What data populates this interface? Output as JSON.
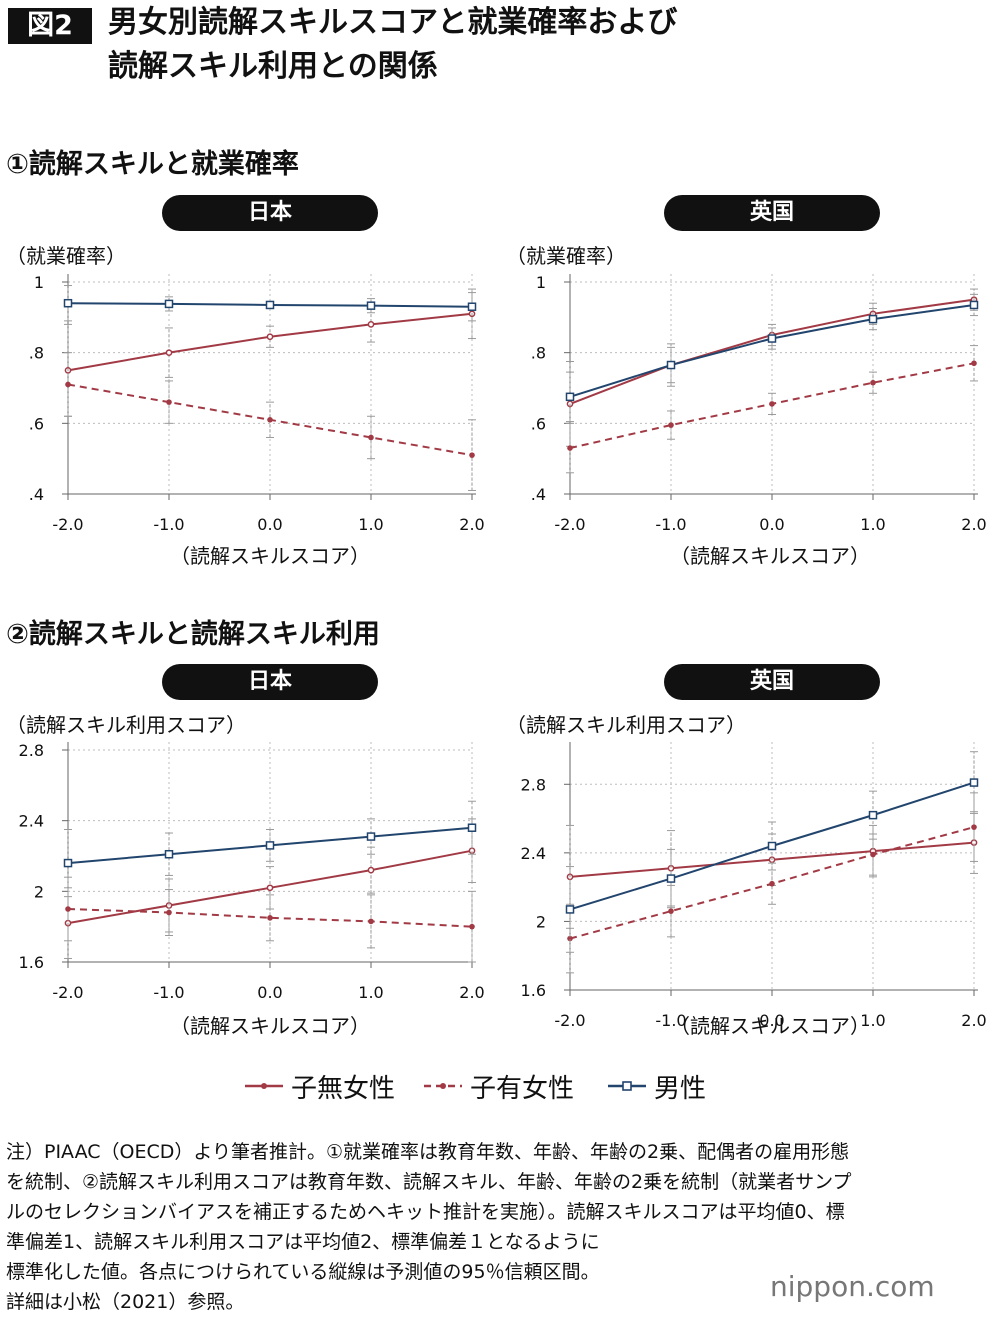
{
  "figure_label": "図2",
  "title_lines": [
    "男女別読解スキルスコアと就業確率および",
    "読解スキル利用との関係"
  ],
  "section1_title": "①読解スキルと就業確率",
  "section2_title": "②読解スキルと読解スキル利用",
  "country_japan": "日本",
  "country_uk": "英国",
  "ylabel_employment": "（就業確率）",
  "ylabel_usage": "（読解スキル利用スコア）",
  "xlabel": "（読解スキルスコア）",
  "legend": {
    "childless_women": "子無女性",
    "mothers": "子有女性",
    "men": "男性"
  },
  "colors": {
    "women": "#a23a45",
    "men": "#22456e",
    "grid": "#bdbdbd",
    "axis": "#666666"
  },
  "note_lines": [
    "注）PIAAC（OECD）より筆者推計。①就業確率は教育年数、年齢、年齢の2乗、配偶者の雇用形態",
    "を統制、②読解スキル利用スコアは教育年数、読解スキル、年齢、年齢の2乗を統制（就業者サンプ",
    "ルのセレクションバイアスを補正するためヘキット推計を実施）。読解スキルスコアは平均値0、標",
    "準偏差1、読解スキル利用スコアは平均値2、標準偏差１となるように",
    "標準化した値。各点につけられている縦線は予測値の95％信頼区間。",
    "詳細は小松（2021）参照。"
  ],
  "brand": "nippon.com",
  "chart_data": [
    {
      "id": "employment-japan",
      "type": "line",
      "title": "日本",
      "xlabel": "（読解スキルスコア）",
      "ylabel": "（就業確率）",
      "x": [
        -2,
        -1,
        0,
        1,
        2
      ],
      "xticks": [
        "-2.0",
        "-1.0",
        "0.0",
        "1.0",
        "2.0"
      ],
      "ylim": [
        0.4,
        1.0
      ],
      "yticks": [
        0.4,
        0.6,
        0.8,
        1.0
      ],
      "ytick_labels": [
        ".4",
        ".6",
        ".8",
        "1"
      ],
      "series": [
        {
          "name": "子無女性",
          "style": "solid-circle",
          "values": [
            0.75,
            0.8,
            0.845,
            0.88,
            0.91
          ],
          "ci": [
            0.13,
            0.07,
            0.03,
            0.05,
            0.07
          ]
        },
        {
          "name": "子有女性",
          "style": "dash-dot",
          "values": [
            0.71,
            0.66,
            0.61,
            0.56,
            0.51
          ],
          "ci": [
            0.09,
            0.06,
            0.05,
            0.06,
            0.1
          ]
        },
        {
          "name": "男性",
          "style": "solid-square",
          "values": [
            0.94,
            0.938,
            0.935,
            0.933,
            0.93
          ],
          "ci": [
            0.05,
            0.02,
            0.01,
            0.02,
            0.04
          ]
        }
      ]
    },
    {
      "id": "employment-uk",
      "type": "line",
      "title": "英国",
      "xlabel": "（読解スキルスコア）",
      "ylabel": "（就業確率）",
      "x": [
        -2,
        -1,
        0,
        1,
        2
      ],
      "xticks": [
        "-2.0",
        "-1.0",
        "0.0",
        "1.0",
        "2.0"
      ],
      "ylim": [
        0.4,
        1.0
      ],
      "yticks": [
        0.4,
        0.6,
        0.8,
        1.0
      ],
      "ytick_labels": [
        ".4",
        ".6",
        ".8",
        "1"
      ],
      "series": [
        {
          "name": "子無女性",
          "style": "solid-circle",
          "values": [
            0.655,
            0.765,
            0.85,
            0.91,
            0.95
          ],
          "ci": [
            0.12,
            0.06,
            0.03,
            0.03,
            0.03
          ]
        },
        {
          "name": "子有女性",
          "style": "dash-dot",
          "values": [
            0.53,
            0.595,
            0.655,
            0.715,
            0.77
          ],
          "ci": [
            0.07,
            0.04,
            0.03,
            0.03,
            0.05
          ]
        },
        {
          "name": "男性",
          "style": "solid-square",
          "values": [
            0.675,
            0.765,
            0.84,
            0.895,
            0.935
          ],
          "ci": [
            0.07,
            0.05,
            0.03,
            0.03,
            0.03
          ]
        }
      ]
    },
    {
      "id": "usage-japan",
      "type": "line",
      "title": "日本",
      "xlabel": "（読解スキルスコア）",
      "ylabel": "（読解スキル利用スコア）",
      "x": [
        -2,
        -1,
        0,
        1,
        2
      ],
      "xticks": [
        "-2.0",
        "-1.0",
        "0.0",
        "1.0",
        "2.0"
      ],
      "ylim": [
        1.6,
        2.8
      ],
      "yticks": [
        1.6,
        2.0,
        2.4,
        2.8
      ],
      "ytick_labels": [
        "1.6",
        "2",
        "2.4",
        "2.8"
      ],
      "series": [
        {
          "name": "子無女性",
          "style": "solid-circle",
          "values": [
            1.82,
            1.92,
            2.02,
            2.12,
            2.23
          ],
          "ci": [
            0.2,
            0.15,
            0.12,
            0.13,
            0.18
          ]
        },
        {
          "name": "子有女性",
          "style": "dash-dot",
          "values": [
            1.9,
            1.88,
            1.85,
            1.83,
            1.8
          ],
          "ci": [
            0.18,
            0.13,
            0.13,
            0.15,
            0.2
          ]
        },
        {
          "name": "男性",
          "style": "solid-square",
          "values": [
            2.16,
            2.21,
            2.26,
            2.31,
            2.36
          ],
          "ci": [
            0.19,
            0.12,
            0.09,
            0.1,
            0.15
          ]
        }
      ]
    },
    {
      "id": "usage-uk",
      "type": "line",
      "title": "英国",
      "xlabel": "（読解スキルスコア）",
      "ylabel": "（読解スキル利用スコア）",
      "x": [
        -2,
        -1,
        0,
        1,
        2
      ],
      "xticks": [
        "-2.0",
        "-1.0",
        "0.0",
        "1.0",
        "2.0"
      ],
      "ylim": [
        1.6,
        3.0
      ],
      "yticks": [
        1.6,
        2.0,
        2.4,
        2.8
      ],
      "ytick_labels": [
        "1.6",
        "2",
        "2.4",
        "2.8"
      ],
      "series": [
        {
          "name": "子無女性",
          "style": "solid-circle",
          "values": [
            2.26,
            2.31,
            2.36,
            2.41,
            2.46
          ],
          "ci": [
            0.3,
            0.22,
            0.15,
            0.15,
            0.18
          ]
        },
        {
          "name": "子有女性",
          "style": "dash-dot",
          "values": [
            1.9,
            2.06,
            2.22,
            2.39,
            2.55
          ],
          "ci": [
            0.2,
            0.15,
            0.12,
            0.12,
            0.2
          ]
        },
        {
          "name": "男性",
          "style": "solid-square",
          "values": [
            2.07,
            2.25,
            2.44,
            2.62,
            2.81
          ],
          "ci": [
            0.25,
            0.17,
            0.14,
            0.14,
            0.18
          ]
        }
      ]
    }
  ]
}
